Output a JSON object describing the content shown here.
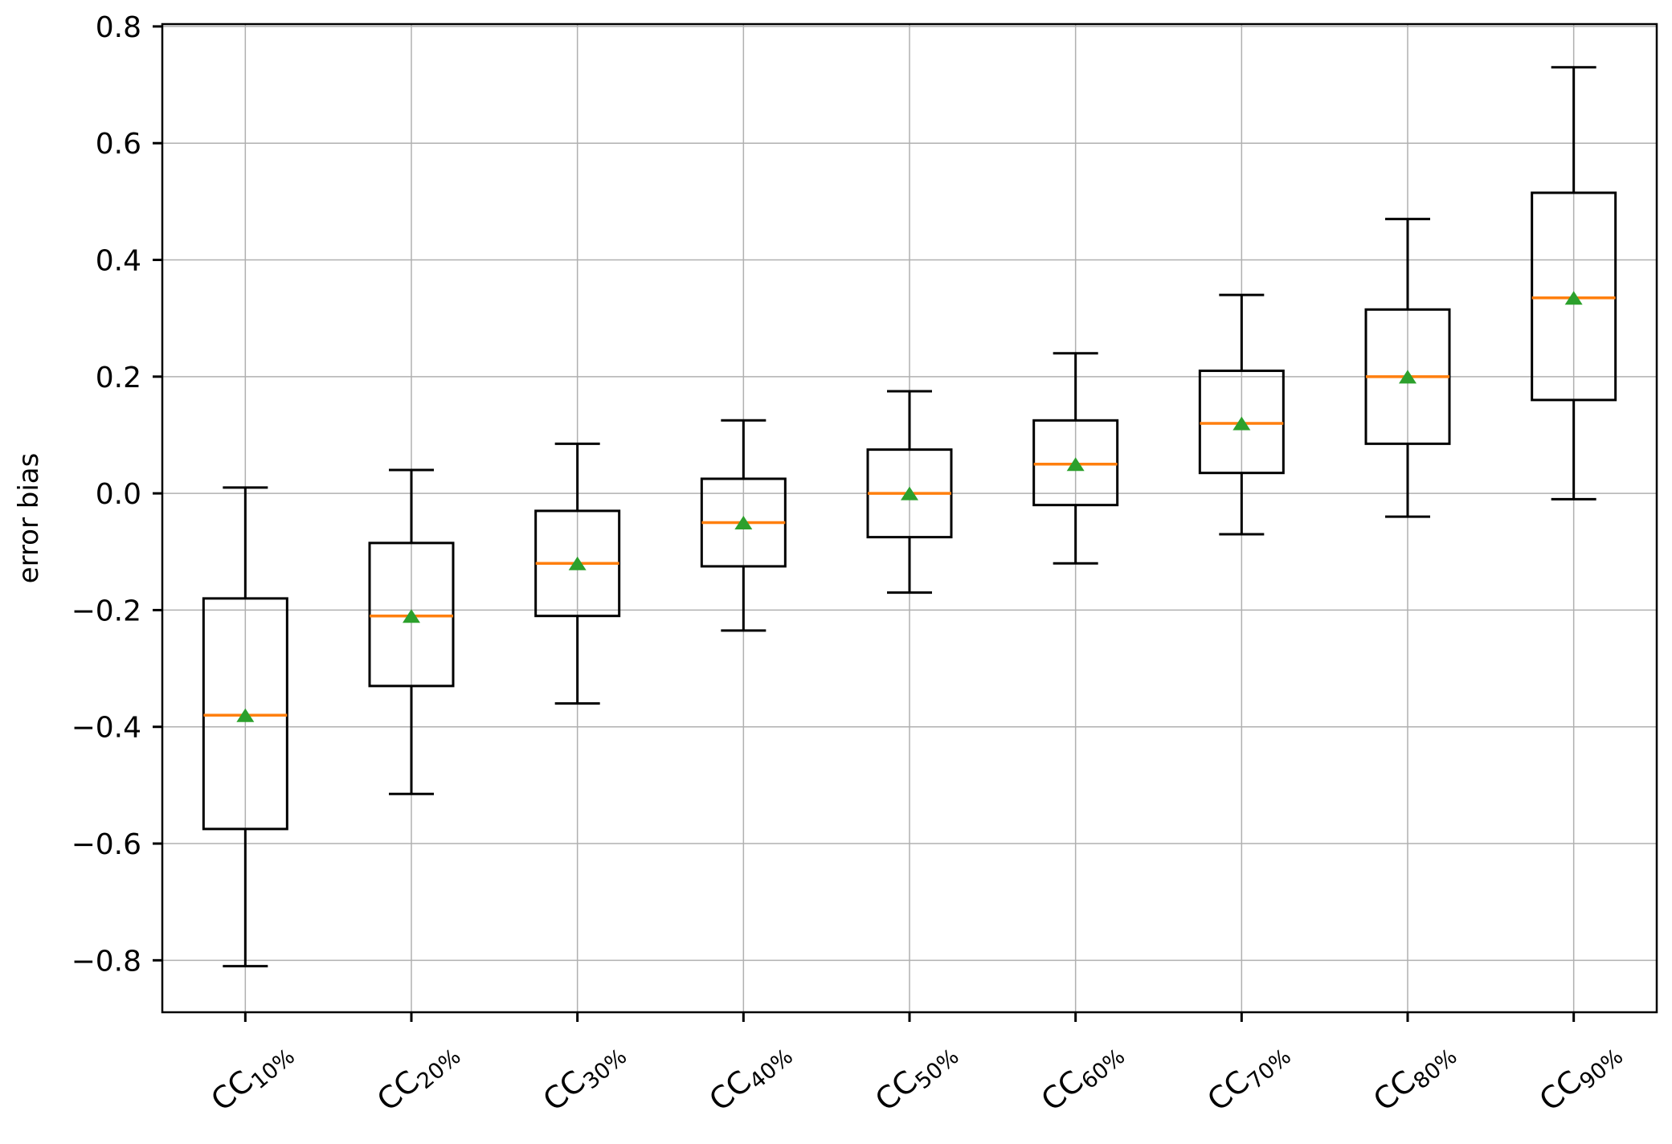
{
  "figure": {
    "background": "#ffffff"
  },
  "chart_data": {
    "type": "box",
    "title": "",
    "xlabel": "",
    "ylabel": "error bias",
    "ylim": [
      -0.889,
      0.804
    ],
    "grid": true,
    "legend": "none",
    "colors": {
      "box_line": "#000000",
      "median": "#ff7f0e",
      "mean_marker": "#2ca02c",
      "grid": "#b0b0b0",
      "background": "#ffffff"
    },
    "y_ticks": [
      {
        "value": 0.8,
        "label": "0.8"
      },
      {
        "value": 0.6,
        "label": "0.6"
      },
      {
        "value": 0.4,
        "label": "0.4"
      },
      {
        "value": 0.2,
        "label": "0.2"
      },
      {
        "value": 0.0,
        "label": "0.0"
      },
      {
        "value": -0.2,
        "label": "−0.2"
      },
      {
        "value": -0.4,
        "label": "−0.4"
      },
      {
        "value": -0.6,
        "label": "−0.6"
      },
      {
        "value": -0.8,
        "label": "−0.8"
      }
    ],
    "categories": [
      {
        "base": "CC",
        "sub": "10%"
      },
      {
        "base": "CC",
        "sub": "20%"
      },
      {
        "base": "CC",
        "sub": "30%"
      },
      {
        "base": "CC",
        "sub": "40%"
      },
      {
        "base": "CC",
        "sub": "50%"
      },
      {
        "base": "CC",
        "sub": "60%"
      },
      {
        "base": "CC",
        "sub": "70%"
      },
      {
        "base": "CC",
        "sub": "80%"
      },
      {
        "base": "CC",
        "sub": "90%"
      }
    ],
    "boxes": [
      {
        "label": "CC10%",
        "whislo": -0.81,
        "q1": -0.575,
        "med": -0.38,
        "q3": -0.18,
        "whishi": 0.01,
        "mean": -0.38
      },
      {
        "label": "CC20%",
        "whislo": -0.515,
        "q1": -0.33,
        "med": -0.21,
        "q3": -0.085,
        "whishi": 0.04,
        "mean": -0.21
      },
      {
        "label": "CC30%",
        "whislo": -0.36,
        "q1": -0.21,
        "med": -0.12,
        "q3": -0.03,
        "whishi": 0.085,
        "mean": -0.12
      },
      {
        "label": "CC40%",
        "whislo": -0.235,
        "q1": -0.125,
        "med": -0.05,
        "q3": 0.025,
        "whishi": 0.125,
        "mean": -0.05
      },
      {
        "label": "CC50%",
        "whislo": -0.17,
        "q1": -0.075,
        "med": 0.0,
        "q3": 0.075,
        "whishi": 0.175,
        "mean": 0.0
      },
      {
        "label": "CC60%",
        "whislo": -0.12,
        "q1": -0.02,
        "med": 0.05,
        "q3": 0.125,
        "whishi": 0.24,
        "mean": 0.05
      },
      {
        "label": "CC70%",
        "whislo": -0.07,
        "q1": 0.035,
        "med": 0.12,
        "q3": 0.21,
        "whishi": 0.34,
        "mean": 0.12
      },
      {
        "label": "CC80%",
        "whislo": -0.04,
        "q1": 0.085,
        "med": 0.2,
        "q3": 0.315,
        "whishi": 0.47,
        "mean": 0.2
      },
      {
        "label": "CC90%",
        "whislo": -0.01,
        "q1": 0.16,
        "med": 0.335,
        "q3": 0.515,
        "whishi": 0.73,
        "mean": 0.335
      }
    ]
  }
}
